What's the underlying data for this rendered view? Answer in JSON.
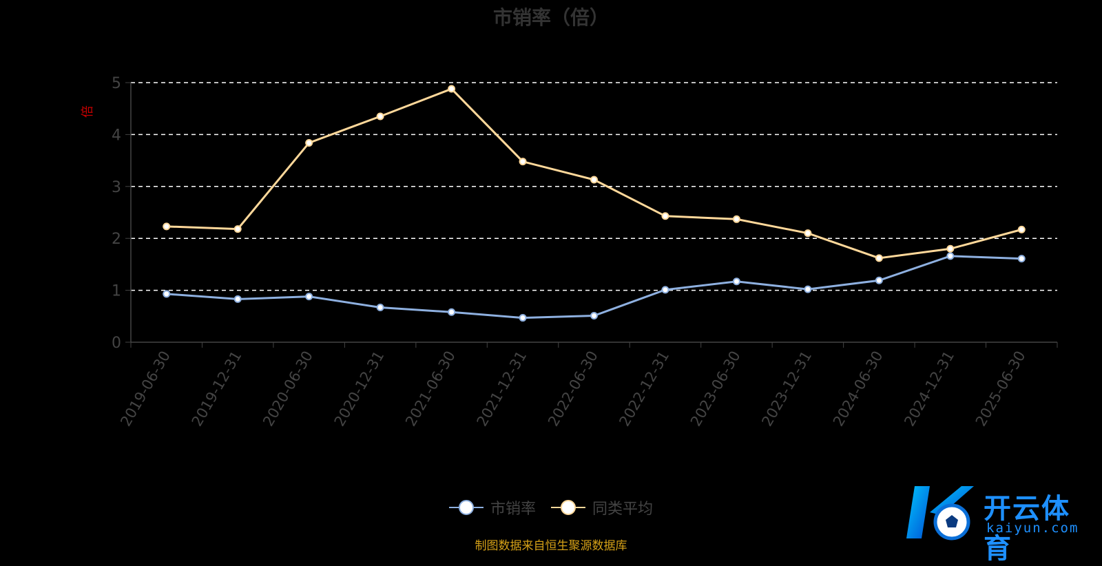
{
  "chart_data": {
    "type": "line",
    "title": "市销率（倍）",
    "ylabel": "倍",
    "categories": [
      "2019-06-30",
      "2019-12-31",
      "2020-06-30",
      "2020-12-31",
      "2021-06-30",
      "2021-12-31",
      "2022-06-30",
      "2022-12-31",
      "2023-06-30",
      "2023-12-31",
      "2024-06-30",
      "2024-12-31",
      "2025-06-30"
    ],
    "series": [
      {
        "name": "市销率",
        "color": "#8eb0e0",
        "values": [
          0.93,
          0.83,
          0.88,
          0.67,
          0.58,
          0.47,
          0.51,
          1.01,
          1.17,
          1.02,
          1.19,
          1.66,
          1.61
        ]
      },
      {
        "name": "同类平均",
        "color": "#ffd89a",
        "values": [
          2.23,
          2.18,
          3.84,
          4.35,
          4.88,
          3.48,
          3.13,
          2.43,
          2.37,
          2.1,
          1.62,
          1.8,
          2.17
        ]
      }
    ],
    "ylim": [
      0,
      5
    ],
    "yticks": [
      0,
      1,
      2,
      3,
      4,
      5
    ],
    "grid": true,
    "legend_position": "bottom-center"
  },
  "source_text": "制图数据来自恒生聚源数据库",
  "logo": {
    "name": "开云体育",
    "domain": "kaiyun.com",
    "mark": "K"
  }
}
